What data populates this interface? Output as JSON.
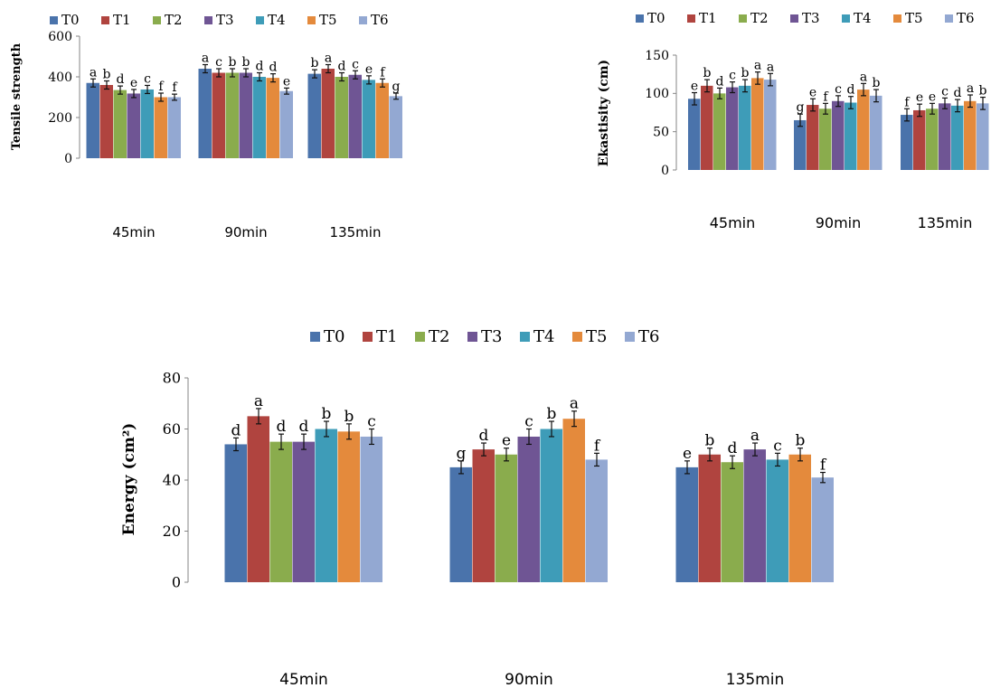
{
  "colors": {
    "T0": "#4a73ab",
    "T1": "#b0443f",
    "T2": "#8aac4d",
    "T3": "#6f5594",
    "T4": "#3e9cb8",
    "T5": "#e48a3c",
    "T6": "#93a8d2"
  },
  "chart_data": [
    {
      "type": "bar",
      "id": "tensile",
      "title": "",
      "xlabel": "",
      "ylabel": "Tensile strength",
      "ylim": [
        0,
        600
      ],
      "yticks": [
        0,
        200,
        400,
        600
      ],
      "categories": [
        "45min",
        "90min",
        "135min"
      ],
      "legend_position": "top",
      "grid": false,
      "series": [
        {
          "name": "T0",
          "values": [
            370,
            440,
            415
          ],
          "errors": [
            20,
            20,
            20
          ],
          "labels": [
            "a",
            "a",
            "b"
          ]
        },
        {
          "name": "T1",
          "values": [
            360,
            420,
            440
          ],
          "errors": [
            20,
            20,
            20
          ],
          "labels": [
            "b",
            "c",
            "a"
          ]
        },
        {
          "name": "T2",
          "values": [
            335,
            420,
            400
          ],
          "errors": [
            20,
            20,
            20
          ],
          "labels": [
            "d",
            "b",
            "d"
          ]
        },
        {
          "name": "T3",
          "values": [
            318,
            420,
            410
          ],
          "errors": [
            20,
            20,
            20
          ],
          "labels": [
            "e",
            "b",
            "c"
          ]
        },
        {
          "name": "T4",
          "values": [
            338,
            400,
            385
          ],
          "errors": [
            20,
            20,
            20
          ],
          "labels": [
            "c",
            "d",
            "e"
          ]
        },
        {
          "name": "T5",
          "values": [
            300,
            395,
            370
          ],
          "errors": [
            20,
            20,
            20
          ],
          "labels": [
            "f",
            "d",
            "f"
          ]
        },
        {
          "name": "T6",
          "values": [
            300,
            330,
            305
          ],
          "errors": [
            15,
            15,
            15
          ],
          "labels": [
            "f",
            "e",
            "g"
          ]
        }
      ]
    },
    {
      "type": "bar",
      "id": "elasticity",
      "title": "",
      "xlabel": "",
      "ylabel": "Ekastisity (cm)",
      "ylim": [
        0,
        150
      ],
      "yticks": [
        0,
        50,
        100,
        150
      ],
      "categories": [
        "45min",
        "90min",
        "135min"
      ],
      "legend_position": "top",
      "grid": false,
      "series": [
        {
          "name": "T0",
          "values": [
            93,
            65,
            72
          ],
          "errors": [
            8,
            8,
            8
          ],
          "labels": [
            "e",
            "g",
            "f"
          ]
        },
        {
          "name": "T1",
          "values": [
            110,
            85,
            78
          ],
          "errors": [
            8,
            8,
            8
          ],
          "labels": [
            "b",
            "e",
            "e"
          ]
        },
        {
          "name": "T2",
          "values": [
            100,
            80,
            80
          ],
          "errors": [
            7,
            7,
            7
          ],
          "labels": [
            "d",
            "f",
            "e"
          ]
        },
        {
          "name": "T3",
          "values": [
            108,
            90,
            87
          ],
          "errors": [
            7,
            7,
            7
          ],
          "labels": [
            "c",
            "c",
            "c"
          ]
        },
        {
          "name": "T4",
          "values": [
            110,
            88,
            84
          ],
          "errors": [
            8,
            8,
            8
          ],
          "labels": [
            "b",
            "d",
            "d"
          ]
        },
        {
          "name": "T5",
          "values": [
            120,
            105,
            90
          ],
          "errors": [
            8,
            8,
            8
          ],
          "labels": [
            "a",
            "a",
            "a"
          ]
        },
        {
          "name": "T6",
          "values": [
            118,
            97,
            87
          ],
          "errors": [
            8,
            8,
            8
          ],
          "labels": [
            "a",
            "b",
            "b"
          ]
        }
      ]
    },
    {
      "type": "bar",
      "id": "energy",
      "title": "",
      "xlabel": "",
      "ylabel": "Energy (cm²)",
      "ylim": [
        0,
        80
      ],
      "yticks": [
        0,
        20,
        40,
        60,
        80
      ],
      "categories": [
        "45min",
        "90min",
        "135min"
      ],
      "legend_position": "top",
      "grid": false,
      "series": [
        {
          "name": "T0",
          "values": [
            54,
            45,
            45
          ],
          "errors": [
            2.5,
            2.5,
            2.5
          ],
          "labels": [
            "d",
            "g",
            "e"
          ]
        },
        {
          "name": "T1",
          "values": [
            65,
            52,
            50
          ],
          "errors": [
            3,
            2.5,
            2.5
          ],
          "labels": [
            "a",
            "d",
            "b"
          ]
        },
        {
          "name": "T2",
          "values": [
            55,
            50,
            47
          ],
          "errors": [
            3,
            2.5,
            2.5
          ],
          "labels": [
            "d",
            "e",
            "d"
          ]
        },
        {
          "name": "T3",
          "values": [
            55,
            57,
            52
          ],
          "errors": [
            3,
            3,
            2.5
          ],
          "labels": [
            "d",
            "c",
            "a"
          ]
        },
        {
          "name": "T4",
          "values": [
            60,
            60,
            48
          ],
          "errors": [
            3,
            3,
            2.5
          ],
          "labels": [
            "b",
            "b",
            "c"
          ]
        },
        {
          "name": "T5",
          "values": [
            59,
            64,
            50
          ],
          "errors": [
            3,
            3,
            2.5
          ],
          "labels": [
            "b",
            "a",
            "b"
          ]
        },
        {
          "name": "T6",
          "values": [
            57,
            48,
            41
          ],
          "errors": [
            3,
            2.5,
            2
          ],
          "labels": [
            "c",
            "f",
            "f"
          ]
        }
      ]
    }
  ]
}
